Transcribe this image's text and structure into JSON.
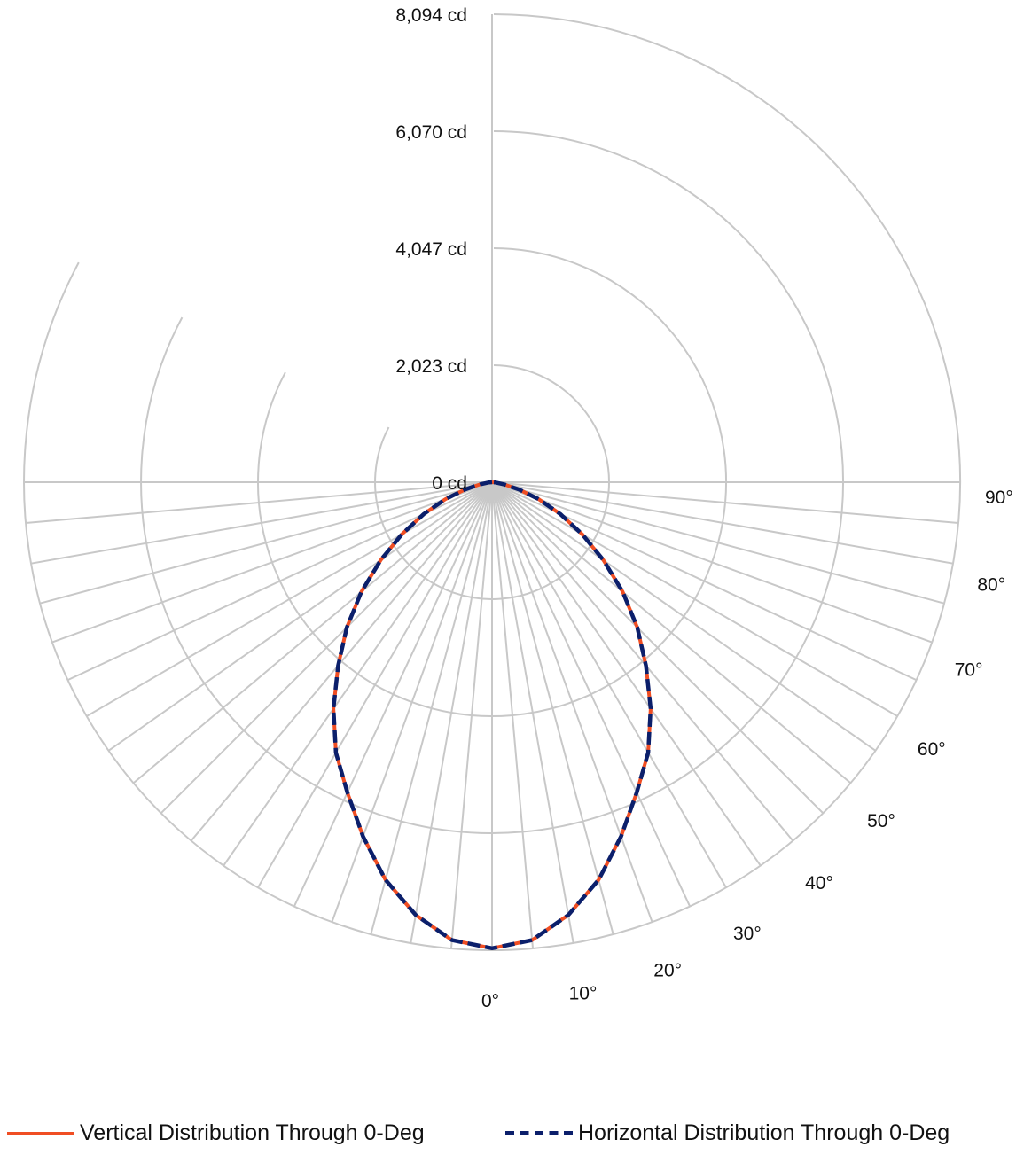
{
  "chart_data": {
    "type": "polar",
    "title": "",
    "radial_unit": "cd",
    "radial_max": 8094,
    "radial_ticks": [
      {
        "value": 0,
        "label": "0 cd"
      },
      {
        "value": 2023,
        "label": "2,023 cd"
      },
      {
        "value": 4047,
        "label": "4,047 cd"
      },
      {
        "value": 6070,
        "label": "6,070 cd"
      },
      {
        "value": 8094,
        "label": "8,094 cd"
      }
    ],
    "angle_labels": [
      "0°",
      "10°",
      "20°",
      "30°",
      "40°",
      "50°",
      "60°",
      "70°",
      "80°",
      "90°"
    ],
    "angle_step_deg": 5,
    "grid": true,
    "legend_position": "bottom",
    "angles_deg": [
      0,
      5,
      10,
      15,
      20,
      25,
      30,
      35,
      40,
      45,
      50,
      55,
      60,
      65,
      70,
      75,
      80,
      85,
      90
    ],
    "series": [
      {
        "name": "Vertical Distribution Through 0-Deg",
        "color": "#f04e23",
        "style": "solid",
        "values": [
          8060,
          7950,
          7600,
          7120,
          6520,
          5920,
          5400,
          4780,
          4140,
          3550,
          2950,
          2350,
          1800,
          1300,
          860,
          480,
          210,
          60,
          0
        ]
      },
      {
        "name": "Horizontal Distribution Through 0-Deg",
        "color": "#0b1f6b",
        "style": "dashed",
        "values": [
          8060,
          7950,
          7600,
          7120,
          6520,
          5920,
          5400,
          4780,
          4140,
          3550,
          2950,
          2350,
          1800,
          1300,
          860,
          480,
          210,
          60,
          0
        ]
      }
    ]
  }
}
